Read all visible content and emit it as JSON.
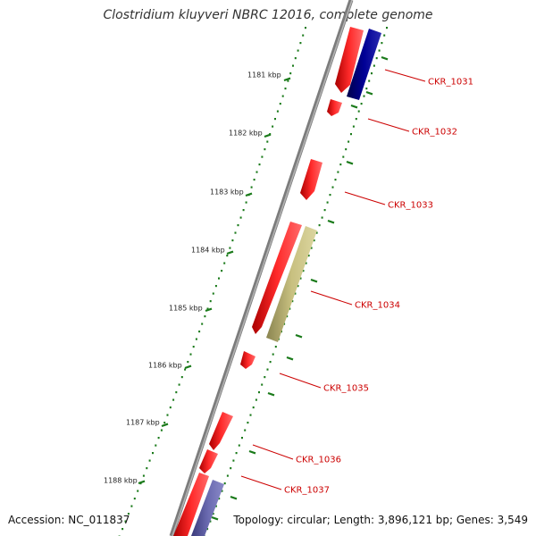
{
  "title": "Clostridium kluyveri NBRC 12016, complete genome",
  "accession": "Accession: NC_011837",
  "stats": "Topology: circular; Length: 3,896,121 bp; Genes: 3,549",
  "colors": {
    "backbone": "#888888",
    "ruler": "#1a7a1a",
    "forward_gene": "#ff0000",
    "reverse_gene": "#000080",
    "rna_gene": "#b8b070",
    "label": "#cc0000"
  },
  "kbp_labels": [
    {
      "label": "1181 kbp"
    },
    {
      "label": "1182 kbp"
    },
    {
      "label": "1183 kbp"
    },
    {
      "label": "1184 kbp"
    },
    {
      "label": "1185 kbp"
    },
    {
      "label": "1186 kbp"
    },
    {
      "label": "1187 kbp"
    },
    {
      "label": "1188 kbp"
    }
  ],
  "gene_labels": [
    {
      "label": "CKR_1031"
    },
    {
      "label": "CKR_1032"
    },
    {
      "label": "CKR_1033"
    },
    {
      "label": "CKR_1034"
    },
    {
      "label": "CKR_1035"
    },
    {
      "label": "CKR_1036"
    },
    {
      "label": "CKR_1037"
    }
  ]
}
